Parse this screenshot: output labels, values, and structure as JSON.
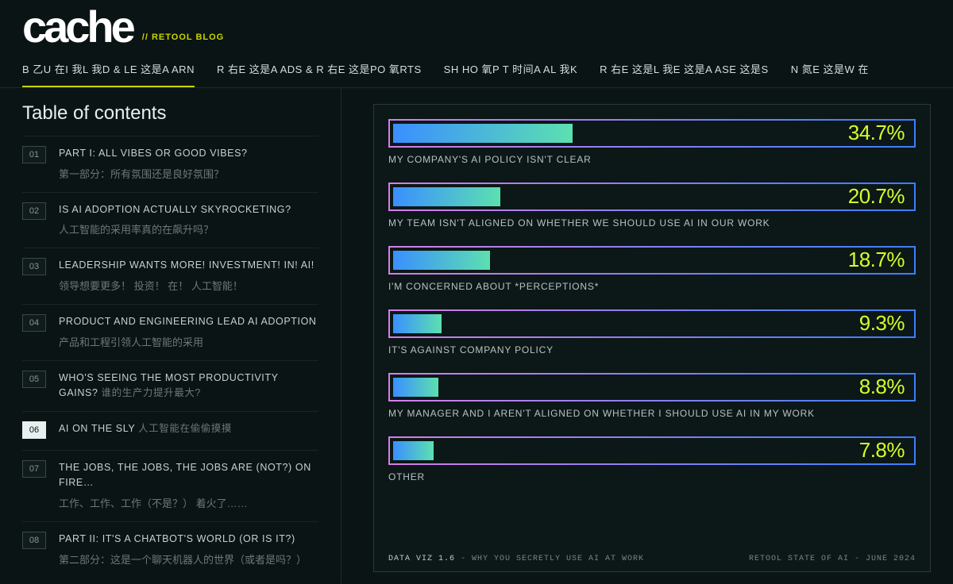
{
  "header": {
    "logo": "cache",
    "tagline": "// RETOOL BLOG"
  },
  "nav": {
    "items": [
      "B 乙U 在I 我L 我D & LE 这是A ARN",
      "R 右E 这是A ADS & R 右E 这是PO 氧RTS",
      "SH HO 氧P T 时间A AL 我K",
      "R 右E 这是L 我E 这是A ASE 这是S",
      "N 氮E 这是W 在"
    ],
    "active_index": 0
  },
  "toc": {
    "title": "Table of contents",
    "items": [
      {
        "num": "01",
        "en": "PART I: ALL VIBES OR GOOD VIBES?",
        "zh": "第一部分：所有氛围还是良好氛围？",
        "active": false
      },
      {
        "num": "02",
        "en": "IS AI ADOPTION ACTUALLY SKYROCKETING?",
        "zh": "人工智能的采用率真的在飙升吗？",
        "active": false
      },
      {
        "num": "03",
        "en": "LEADERSHIP WANTS MORE! INVESTMENT! IN! AI!",
        "zh": "领导想要更多！ 投资！ 在！ 人工智能！",
        "active": false
      },
      {
        "num": "04",
        "en": "PRODUCT AND ENGINEERING LEAD AI ADOPTION",
        "zh": "产品和工程引领人工智能的采用",
        "active": false
      },
      {
        "num": "05",
        "en": "WHO'S SEEING THE MOST PRODUCTIVITY GAINS?",
        "en_sub": "谁的生产力提升最大?",
        "zh": "",
        "active": false
      },
      {
        "num": "06",
        "en": "AI ON THE SLY",
        "en_sub": "人工智能在偷偷摸摸",
        "zh": "",
        "active": true
      },
      {
        "num": "07",
        "en": "THE JOBS, THE JOBS, THE JOBS ARE (NOT?) ON FIRE…",
        "zh": "工作、工作、工作（不是？） 着火了……",
        "active": false
      },
      {
        "num": "08",
        "en": "PART II: IT'S A CHATBOT'S WORLD (OR IS IT?)",
        "zh": "第二部分：这是一个聊天机器人的世界（或者是吗？）",
        "active": false
      }
    ]
  },
  "chart": {
    "type": "bar",
    "bar_gradient": [
      "#3a8fff",
      "#5ce0b0"
    ],
    "border_gradient": [
      "#d47fe8",
      "#3a7fff"
    ],
    "pct_color": "#d4ff2a",
    "pct_fontsize": 26,
    "label_fontsize": 12,
    "track_height": 36,
    "rows": [
      {
        "pct": 34.7,
        "pct_label": "34.7%",
        "label": "MY COMPANY'S AI POLICY ISN'T CLEAR"
      },
      {
        "pct": 20.7,
        "pct_label": "20.7%",
        "label": "MY TEAM ISN'T ALIGNED ON WHETHER WE SHOULD USE AI IN OUR WORK"
      },
      {
        "pct": 18.7,
        "pct_label": "18.7%",
        "label": "I'M CONCERNED ABOUT *PERCEPTIONS*"
      },
      {
        "pct": 9.3,
        "pct_label": "9.3%",
        "label": "IT'S AGAINST COMPANY POLICY"
      },
      {
        "pct": 8.8,
        "pct_label": "8.8%",
        "label": "MY MANAGER AND I AREN'T ALIGNED ON WHETHER I SHOULD USE AI IN MY WORK"
      },
      {
        "pct": 7.8,
        "pct_label": "7.8%",
        "label": "OTHER"
      }
    ],
    "footer_left_bold": "DATA VIZ 1.6",
    "footer_left_rest": " - WHY YOU SECRETLY USE AI AT WORK",
    "footer_right": "RETOOL STATE OF AI - JUNE 2024"
  }
}
